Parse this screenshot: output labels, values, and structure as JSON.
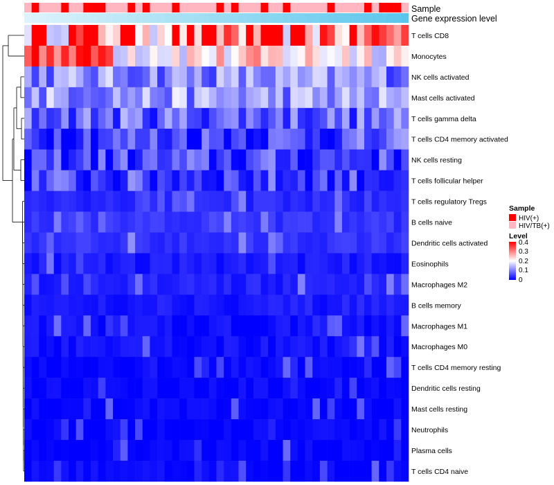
{
  "chart_data": {
    "type": "heatmap",
    "annotations": [
      {
        "label": "Sample",
        "kind": "categorical"
      },
      {
        "label": "Gene expression level",
        "kind": "continuous"
      }
    ],
    "sample_groups": [
      1,
      0,
      1,
      1,
      1,
      0,
      1,
      1,
      0,
      0,
      0,
      1,
      1,
      1,
      0,
      1,
      0,
      1,
      1,
      1,
      0,
      1,
      1,
      1,
      1,
      1,
      0,
      1,
      0,
      1,
      1,
      1,
      0,
      1,
      1,
      0,
      1,
      1,
      1,
      1,
      1,
      0,
      1,
      1,
      1,
      1,
      0,
      1,
      0,
      0,
      0,
      1
    ],
    "rows": [
      "T cells CD8",
      "Monocytes",
      "NK cells activated",
      "Mast cells activated",
      "T cells gamma delta",
      "T cells CD4 memory activated",
      "NK cells resting",
      "T cells follicular helper",
      "T cells regulatory  Tregs",
      "B cells naive",
      "Dendritic cells activated",
      "Eosinophils",
      "Macrophages M2",
      "B cells memory",
      "Macrophages M1",
      "Macrophages M0",
      "T cells CD4 memory resting",
      "Dendritic cells resting",
      "Mast cells resting",
      "Neutrophils",
      "Plasma cells",
      "T cells CD4 naive"
    ],
    "row_means": [
      0.3,
      0.25,
      0.11,
      0.12,
      0.08,
      0.06,
      0.05,
      0.05,
      0.03,
      0.04,
      0.04,
      0.02,
      0.025,
      0.02,
      0.01,
      0.012,
      0.004,
      0.003,
      0.001,
      0.001,
      0.003,
      0.002
    ],
    "n_columns": 52,
    "legend_sample": {
      "title": "Sample",
      "entries": [
        {
          "label": "HIV(+)",
          "color": "#ff0000"
        },
        {
          "label": "HIV/TB(+)",
          "color": "#ffb6c1"
        }
      ]
    },
    "legend_level": {
      "title": "Level",
      "ticks": [
        "0.4",
        "0.3",
        "0.2",
        "0.1",
        "0"
      ],
      "range": [
        0,
        0.4
      ],
      "colors": [
        "#0000ff",
        "#ffffff",
        "#ff0000"
      ]
    },
    "gene_expression_colors": [
      "#ddf3fb",
      "#5bc6ec"
    ]
  }
}
